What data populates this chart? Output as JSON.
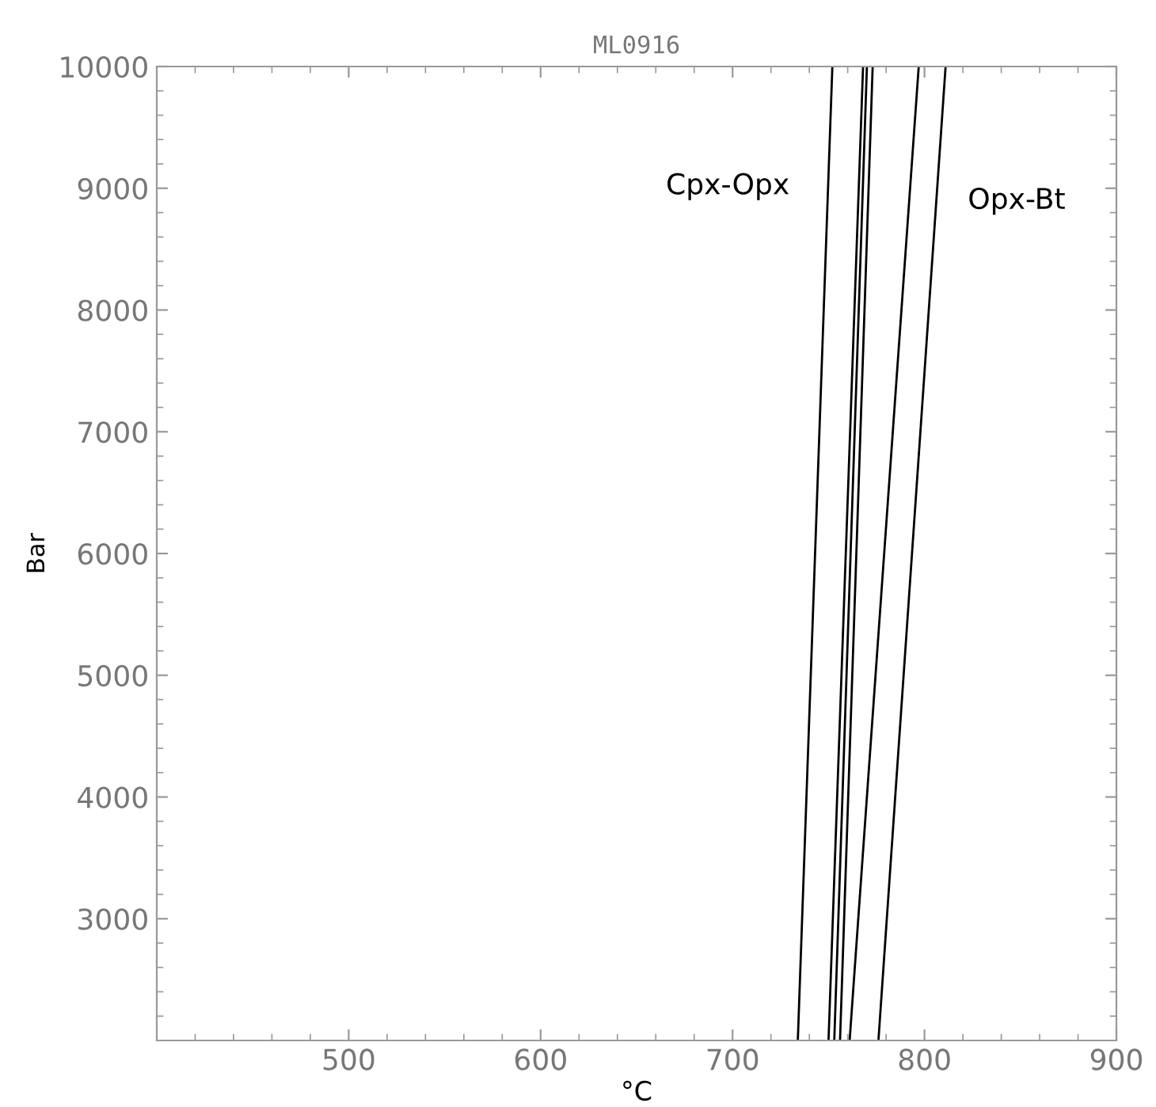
{
  "chart_data": {
    "type": "line",
    "title": "ML0916",
    "xlabel": "°C",
    "ylabel": "Bar",
    "xlim": [
      400,
      900
    ],
    "xticks": [
      500,
      600,
      700,
      800,
      900
    ],
    "ylim": [
      2000,
      10000
    ],
    "yticks": [
      3000,
      4000,
      5000,
      6000,
      7000,
      8000,
      9000,
      10000
    ],
    "grid": false,
    "marker": "none",
    "line_style": "solid",
    "series": [
      {
        "color": "#000000",
        "x": [
          734,
          752
        ],
        "values": [
          2000,
          10000
        ]
      },
      {
        "color": "#000000",
        "x": [
          750,
          768
        ],
        "values": [
          2000,
          10000
        ]
      },
      {
        "color": "#000000",
        "x": [
          753,
          770
        ],
        "values": [
          2000,
          10000
        ]
      },
      {
        "color": "#000000",
        "x": [
          756,
          773
        ],
        "values": [
          2000,
          10000
        ]
      },
      {
        "color": "#000000",
        "x": [
          761,
          797
        ],
        "values": [
          2000,
          10000
        ]
      },
      {
        "color": "#000000",
        "x": [
          776,
          811
        ],
        "values": [
          2000,
          10000
        ]
      }
    ],
    "annotations": [
      "Cpx-Opx",
      "Opx-Bt"
    ]
  }
}
